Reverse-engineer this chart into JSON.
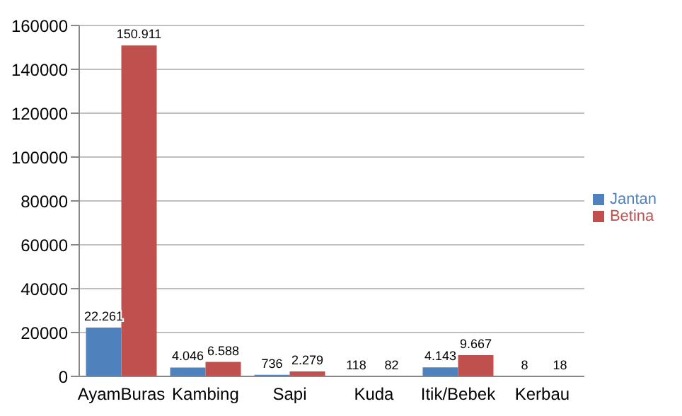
{
  "chart_data": {
    "type": "bar",
    "categories": [
      "AyamBuras",
      "Kambing",
      "Sapi",
      "Kuda",
      "Itik/Bebek",
      "Kerbau"
    ],
    "series": [
      {
        "name": "Jantan",
        "color": "#4f81bd",
        "values": [
          22261,
          4046,
          736,
          118,
          4143,
          8
        ],
        "value_labels": [
          "22.261",
          "4.046",
          "736",
          "118",
          "4.143",
          "8"
        ]
      },
      {
        "name": "Betina",
        "color": "#c0504d",
        "values": [
          150911,
          6588,
          2279,
          82,
          9667,
          18
        ],
        "value_labels": [
          "150.911",
          "6.588",
          "2.279",
          "82",
          "9.667",
          "18"
        ]
      }
    ],
    "ylim": [
      0,
      160000
    ],
    "yticks": [
      0,
      20000,
      40000,
      60000,
      80000,
      100000,
      120000,
      140000,
      160000
    ],
    "grid": "y",
    "legend": "right"
  }
}
